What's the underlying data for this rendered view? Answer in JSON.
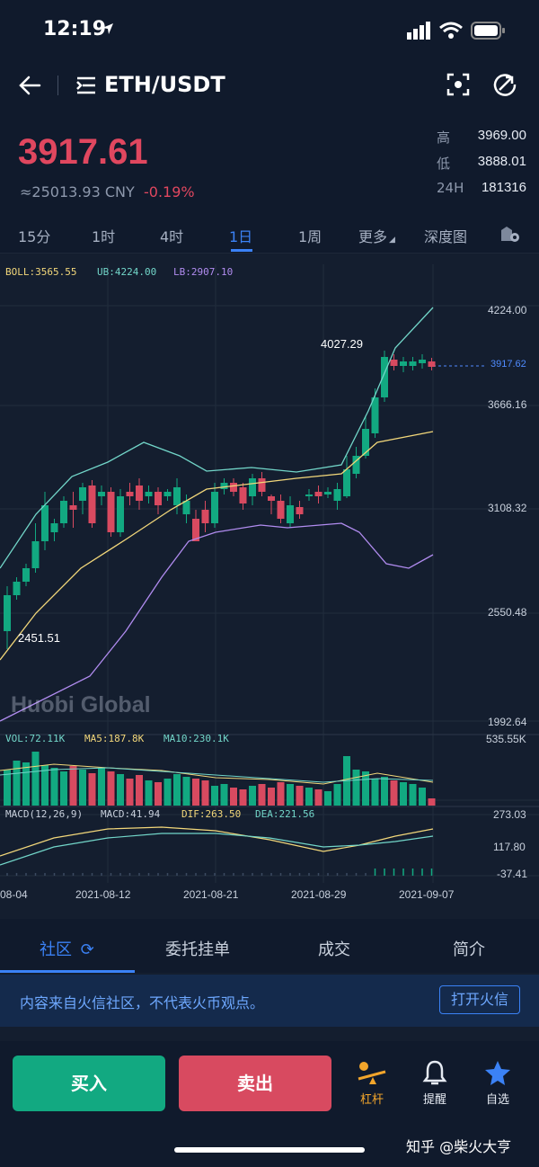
{
  "status_bar": {
    "time": "12:19"
  },
  "header": {
    "pair": "ETH/USDT",
    "price": "3917.61",
    "cny": "≈25013.93 CNY",
    "change": "-0.19%",
    "stats": [
      {
        "label": "高",
        "value": "3969.00"
      },
      {
        "label": "低",
        "value": "3888.01"
      },
      {
        "label": "24H",
        "value": "181316"
      }
    ]
  },
  "tabs": [
    "15分",
    "1时",
    "4时",
    "1日",
    "1周",
    "更多",
    "深度图"
  ],
  "chart": {
    "boll": "BOLL:3565.55",
    "ub": "UB:4224.00",
    "lb": "LB:2907.10",
    "y_labels": [
      "4224.00",
      "3666.16",
      "3108.32",
      "2550.48",
      "1992.64"
    ],
    "current_price_label": "3917.62",
    "high_marker": "4027.29",
    "low_marker": "2451.51",
    "watermark": "Huobi Global",
    "vol": "VOL:72.11K",
    "ma5": "MA5:187.8K",
    "ma10": "MA10:230.1K",
    "vol_max": "535.55K",
    "macd_params": "MACD(12,26,9)",
    "macd": "MACD:41.94",
    "dif": "DIF:263.50",
    "dea": "DEA:221.56",
    "macd_labels": [
      "273.03",
      "117.80",
      "-37.41"
    ],
    "x_labels": [
      "08-04",
      "2021-08-12",
      "2021-08-21",
      "2021-08-29",
      "2021-09-07"
    ],
    "colors": {
      "up": "#12a981",
      "down": "#d84a60",
      "boll_mid": "#f2d77a",
      "boll_ub": "#72d6c9",
      "boll_lb": "#b18cf0"
    }
  },
  "bottom_tabs": [
    "社区",
    "委托挂单",
    "成交",
    "简介"
  ],
  "notice": {
    "text": "内容来自火信社区，不代表火币观点。",
    "button": "打开火信"
  },
  "actions": {
    "buy": "买入",
    "sell": "卖出",
    "leverage": "杠杆",
    "alert": "提醒",
    "favorite": "自选"
  },
  "footer_watermark": "知乎 @柴火大亨"
}
